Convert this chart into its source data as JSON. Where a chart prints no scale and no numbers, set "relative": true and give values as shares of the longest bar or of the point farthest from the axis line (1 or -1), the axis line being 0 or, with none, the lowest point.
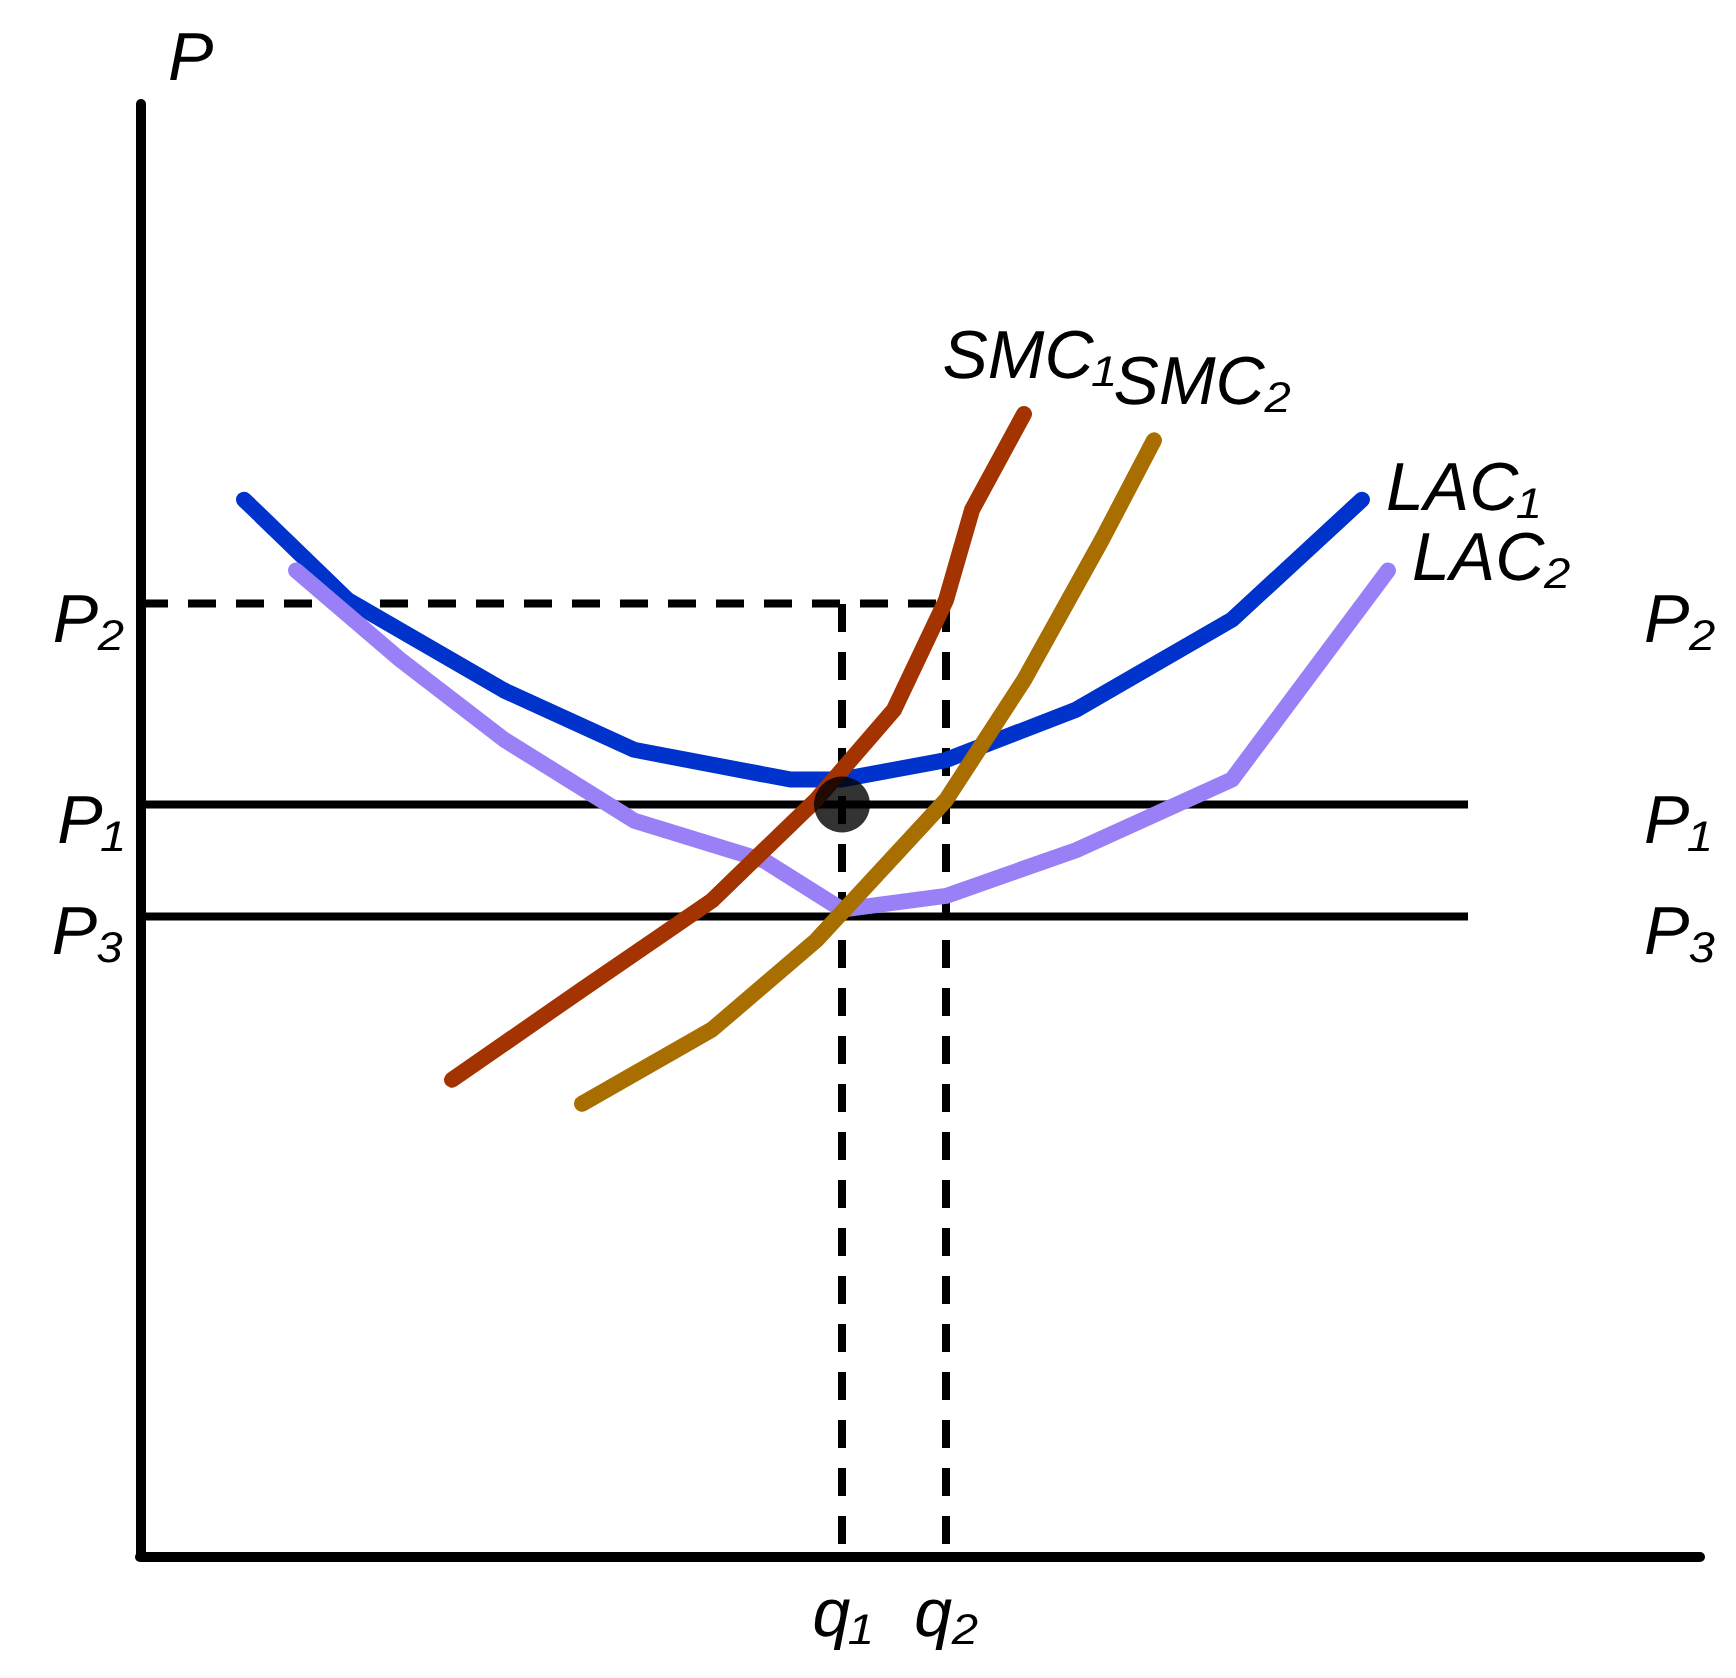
{
  "chart_data": {
    "type": "line",
    "relative": true,
    "ylabel": "P",
    "grid": false,
    "marker": "none",
    "line_style": "solid",
    "categories": [
      null,
      null,
      null,
      null,
      null,
      null,
      null,
      null,
      null,
      null,
      null,
      null,
      null,
      null,
      null,
      null,
      null,
      null,
      null,
      null,
      null,
      null,
      null,
      null,
      null,
      null,
      null,
      "q₁",
      null,
      null,
      null,
      "q₂",
      null,
      null,
      null,
      null,
      null,
      null,
      null,
      null,
      null,
      null,
      null,
      null,
      null,
      null,
      null,
      null,
      null,
      null,
      null,
      null,
      null,
      null,
      null,
      null,
      null,
      null,
      null,
      null,
      null
    ],
    "series": [
      {
        "name": "LAC₁",
        "color": "#0033cc",
        "values": [
          null,
          null,
          null,
          null,
          0.925,
          null,
          null,
          null,
          0.837,
          null,
          null,
          null,
          null,
          null,
          0.758,
          null,
          null,
          null,
          null,
          0.706,
          null,
          null,
          null,
          null,
          null,
          0.68,
          null,
          0.68,
          null,
          null,
          null,
          0.697,
          null,
          null,
          null,
          null,
          0.741,
          null,
          null,
          null,
          null,
          null,
          0.82,
          null,
          null,
          null,
          null,
          0.925,
          null,
          null,
          null,
          null,
          null,
          null,
          null,
          null,
          null,
          null,
          null,
          null,
          null
        ]
      },
      {
        "name": "LAC₂",
        "color": "#9980f7",
        "values": [
          null,
          null,
          null,
          null,
          null,
          null,
          0.863,
          null,
          null,
          null,
          0.785,
          null,
          null,
          null,
          0.715,
          null,
          null,
          null,
          null,
          0.644,
          null,
          null,
          null,
          null,
          0.609,
          null,
          null,
          0.566,
          null,
          null,
          null,
          0.578,
          null,
          null,
          null,
          null,
          0.618,
          null,
          null,
          null,
          null,
          null,
          0.68,
          null,
          null,
          null,
          null,
          null,
          0.863,
          null,
          null,
          null,
          null,
          null,
          null,
          null,
          null,
          null,
          null,
          null,
          null
        ]
      },
      {
        "name": "SMC₁",
        "color": "#a33300",
        "values": [
          null,
          null,
          null,
          null,
          null,
          null,
          null,
          null,
          null,
          null,
          null,
          null,
          0.417,
          null,
          null,
          null,
          null,
          0.496,
          null,
          null,
          null,
          null,
          0.574,
          null,
          null,
          null,
          0.662,
          null,
          null,
          0.741,
          null,
          0.837,
          0.916,
          null,
          1.0,
          null,
          null,
          null,
          null,
          null,
          null,
          null,
          null,
          null,
          null,
          null,
          null,
          null,
          null,
          null,
          null,
          null,
          null,
          null,
          null,
          null,
          null,
          null,
          null,
          null,
          null
        ]
      },
      {
        "name": "SMC₂",
        "color": "#a86f00",
        "values": [
          null,
          null,
          null,
          null,
          null,
          null,
          null,
          null,
          null,
          null,
          null,
          null,
          null,
          null,
          null,
          null,
          null,
          0.396,
          null,
          null,
          null,
          null,
          0.461,
          null,
          null,
          null,
          0.539,
          null,
          null,
          null,
          null,
          0.662,
          null,
          null,
          0.767,
          null,
          null,
          0.89,
          null,
          0.977,
          null,
          null,
          null,
          null,
          null,
          null,
          null,
          null,
          null,
          null,
          null,
          null,
          null,
          null,
          null,
          null,
          null,
          null,
          null,
          null,
          null
        ]
      },
      {
        "type": "scatter",
        "marker": "circle",
        "color": "#000000",
        "x": [
          "q₁"
        ],
        "values": [
          0.658
        ]
      }
    ],
    "ref_lines": [
      {
        "axis": "y",
        "value": 0.834,
        "label": "P₂",
        "line_style": "dashed",
        "color": "#000000"
      },
      {
        "axis": "y",
        "value": 0.658,
        "label": "P₁",
        "line_style": "solid",
        "color": "#000000"
      },
      {
        "axis": "y",
        "value": 0.56,
        "label": "P₃",
        "line_style": "solid",
        "color": "#000000"
      },
      {
        "axis": "x",
        "value": "q₁",
        "line_style": "dashed",
        "color": "#000000"
      },
      {
        "axis": "x",
        "value": "q₂",
        "line_style": "dashed",
        "color": "#000000"
      }
    ]
  }
}
